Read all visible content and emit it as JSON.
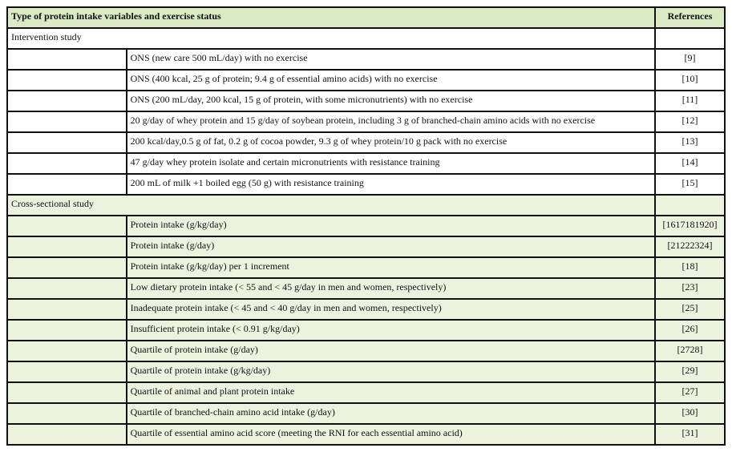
{
  "header": {
    "type": "Type of protein intake variables and exercise status",
    "references": "References"
  },
  "sections": [
    {
      "title": "Intervention study",
      "rows": [
        {
          "desc": "ONS (new care 500 mL/day) with no exercise",
          "ref": "[9]"
        },
        {
          "desc": "ONS (400 kcal, 25 g of protein; 9.4 g of essential amino acids) with no exercise",
          "ref": "[10]"
        },
        {
          "desc": "ONS (200 mL/day, 200 kcal, 15 g of protein, with some micronutrients) with no exercise",
          "ref": "[11]"
        },
        {
          "desc": "20 g/day of whey protein and 15 g/day of soybean protein, including 3 g of branched-chain amino acids with no exercise",
          "ref": "[12]"
        },
        {
          "desc": "200 kcal/day,0.5 g of fat, 0.2 g of cocoa powder, 9.3 g of whey protein/10 g pack with no exercise",
          "ref": "[13]"
        },
        {
          "desc": "47 g/day whey protein isolate and certain micronutrients with resistance training",
          "ref": "[14]"
        },
        {
          "desc": "200 mL of milk +1 boiled egg (50 g) with resistance training",
          "ref": "[15]"
        }
      ]
    },
    {
      "title": "Cross-sectional study",
      "rows": [
        {
          "desc": "Protein intake (g/kg/day)",
          "ref": "[1617181920]"
        },
        {
          "desc": "Protein intake (g/day)",
          "ref": "[21222324]"
        },
        {
          "desc": "Protein intake (g/kg/day) per 1 increment",
          "ref": "[18]"
        },
        {
          "desc": "Low dietary protein intake (< 55 and < 45 g/day in men and women, respectively)",
          "ref": "[23]"
        },
        {
          "desc": "Inadequate protein intake (< 45 and < 40 g/day in men and women, respectively)",
          "ref": "[25]"
        },
        {
          "desc": "Insufficient protein intake (< 0.91 g/kg/day)",
          "ref": "[26]"
        },
        {
          "desc": "Quartile of protein intake (g/day)",
          "ref": "[2728]"
        },
        {
          "desc": "Quartile of protein intake (g/kg/day)",
          "ref": "[29]"
        },
        {
          "desc": "Quartile of animal and plant protein intake",
          "ref": "[27]"
        },
        {
          "desc": "Quartile of branched-chain amino acid intake (g/day)",
          "ref": "[30]"
        },
        {
          "desc": "Quartile of essential amino acid score (meeting the RNI for each essential amino acid)",
          "ref": "[31]"
        }
      ]
    }
  ]
}
